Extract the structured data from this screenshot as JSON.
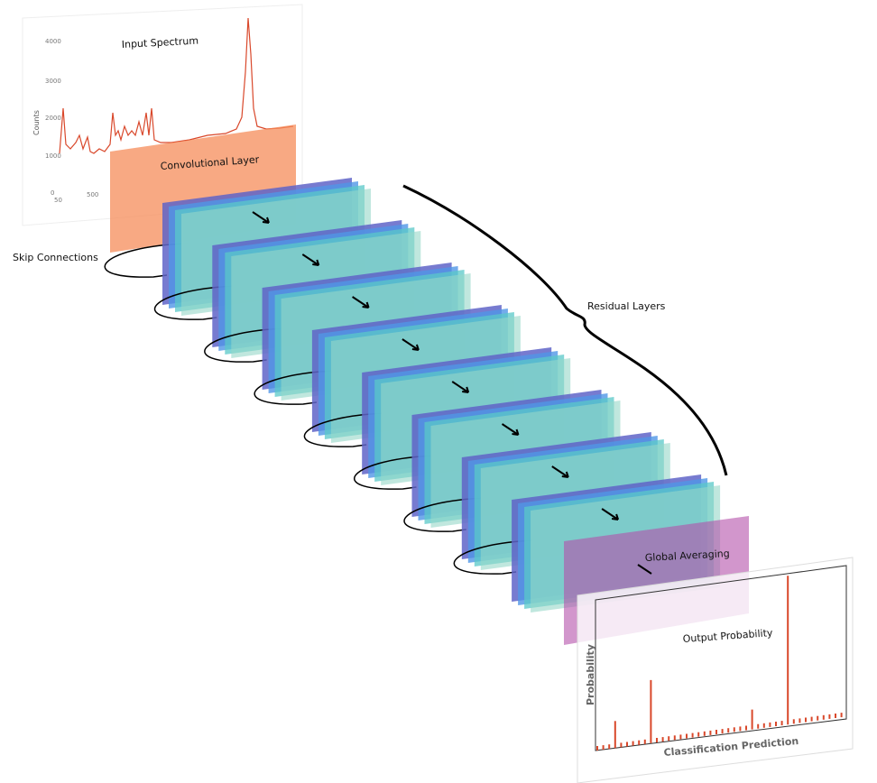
{
  "input_spectrum": {
    "title": "Input Spectrum",
    "y_label": "Counts",
    "y_ticks": [
      "4000",
      "3000",
      "2000",
      "1000",
      "0"
    ],
    "x_ticks": [
      "50",
      "500"
    ]
  },
  "convolutional_layer": {
    "label": "Convolutional Layer"
  },
  "skip_connections": {
    "label": "Skip Connections"
  },
  "residual_layers": {
    "label": "Residual Layers"
  },
  "global_averaging": {
    "label": "Global Averaging"
  },
  "output": {
    "title": "Output Probability",
    "y_label": "Probability",
    "x_label": "Classification Prediction"
  }
}
